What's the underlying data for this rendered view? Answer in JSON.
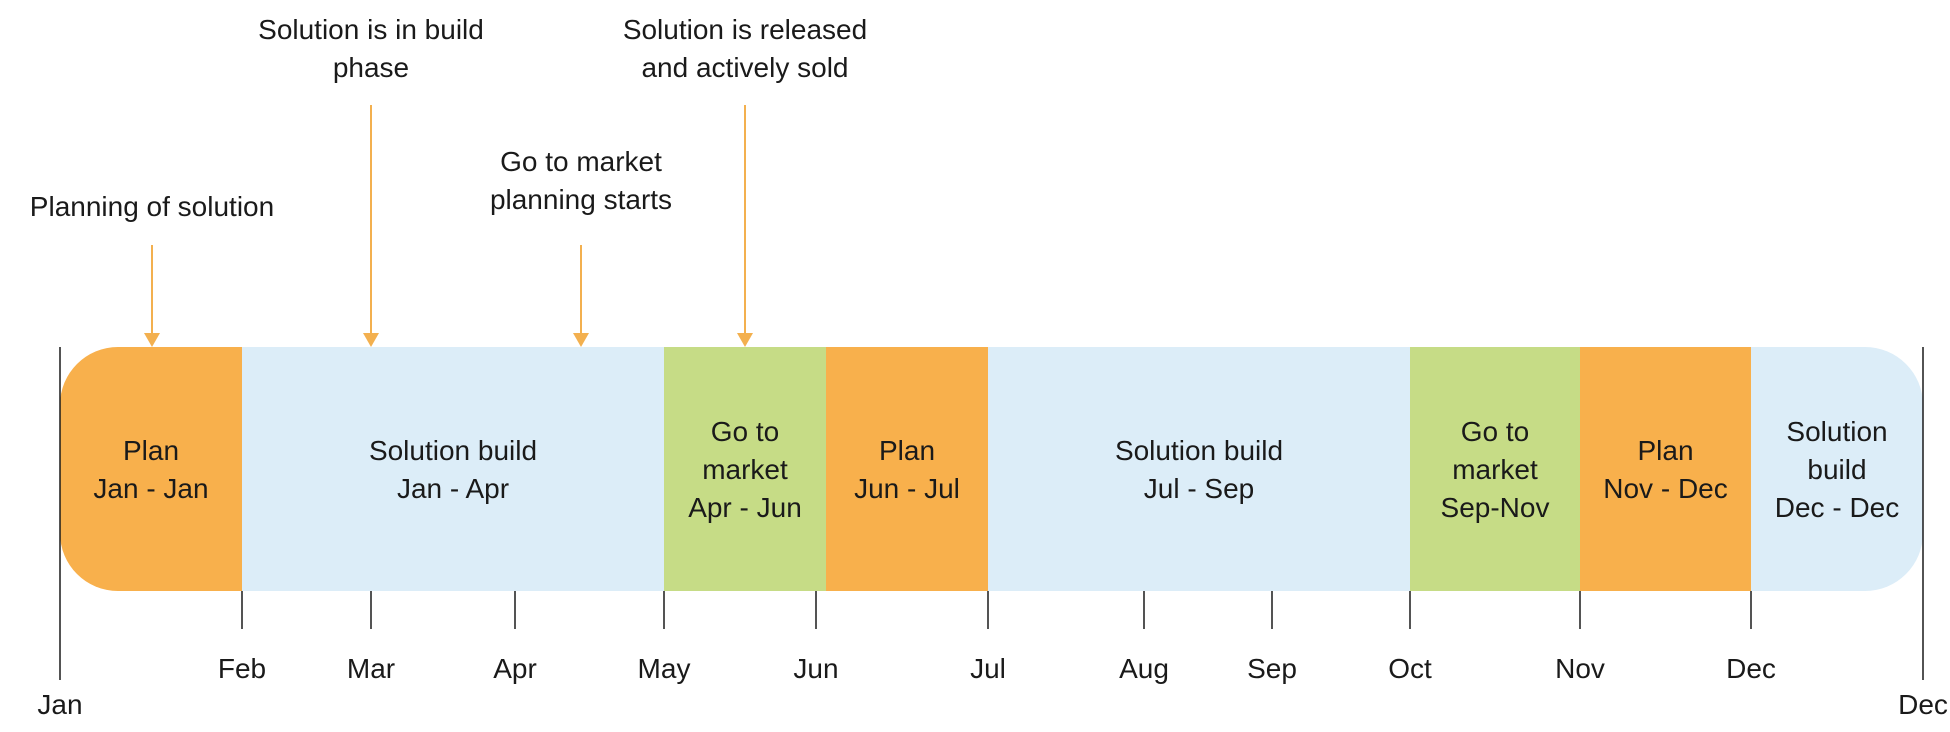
{
  "colors": {
    "plan": "#f8b04c",
    "build": "#dcedf8",
    "gtm": "#c6dc86",
    "arrow": "#f3b04f",
    "axis": "#1a1a1a"
  },
  "phases": [
    {
      "kind": "plan",
      "lines": [
        "Plan",
        "Jan - Jan"
      ]
    },
    {
      "kind": "build",
      "lines": [
        "Solution build",
        "Jan - Apr"
      ]
    },
    {
      "kind": "gtm",
      "lines": [
        "Go to",
        "market",
        "Apr - Jun"
      ]
    },
    {
      "kind": "plan",
      "lines": [
        "Plan",
        "Jun - Jul"
      ]
    },
    {
      "kind": "build",
      "lines": [
        "Solution build",
        "Jul - Sep"
      ]
    },
    {
      "kind": "gtm",
      "lines": [
        "Go to",
        "market",
        "Sep-Nov"
      ]
    },
    {
      "kind": "plan",
      "lines": [
        "Plan",
        "Nov - Dec"
      ]
    },
    {
      "kind": "build",
      "lines": [
        "Solution",
        "build",
        "Dec - Dec"
      ]
    }
  ],
  "ticks": [
    "Jan",
    "Feb",
    "Mar",
    "Apr",
    "May",
    "Jun",
    "Jul",
    "Aug",
    "Sep",
    "Oct",
    "Nov",
    "Dec",
    "Dec"
  ],
  "annotations": [
    {
      "lines": [
        "Planning of solution"
      ]
    },
    {
      "lines": [
        "Solution is in build",
        "phase"
      ]
    },
    {
      "lines": [
        "Go to market",
        "planning starts"
      ]
    },
    {
      "lines": [
        "Solution is released",
        "and actively sold"
      ]
    }
  ]
}
